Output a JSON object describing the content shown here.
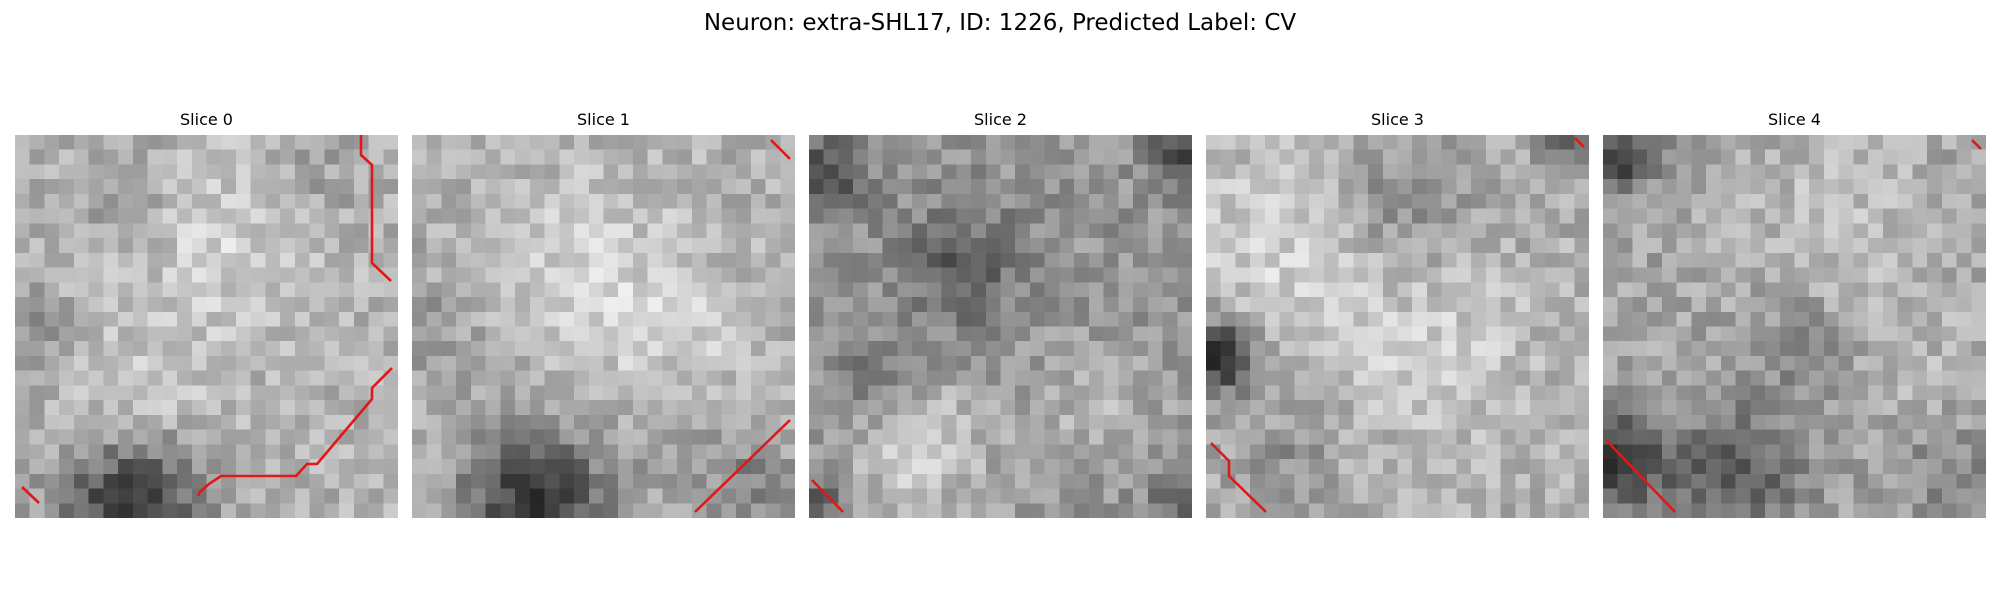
{
  "figure": {
    "title": "Neuron: extra-SHL17, ID: 1226, Predicted Label: CV"
  },
  "panels": [
    {
      "title": "Slice 0",
      "image_name": "slice-0-grayscale-microscopy",
      "overlay": "red-contour"
    },
    {
      "title": "Slice 1",
      "image_name": "slice-1-grayscale-microscopy",
      "overlay": "red-contour"
    },
    {
      "title": "Slice 2",
      "image_name": "slice-2-grayscale-microscopy",
      "overlay": "red-contour"
    },
    {
      "title": "Slice 3",
      "image_name": "slice-3-grayscale-microscopy",
      "overlay": "red-contour"
    },
    {
      "title": "Slice 4",
      "image_name": "slice-4-grayscale-microscopy",
      "overlay": "red-contour"
    }
  ],
  "colors": {
    "background": "#ffffff",
    "contour": "#e01818"
  }
}
